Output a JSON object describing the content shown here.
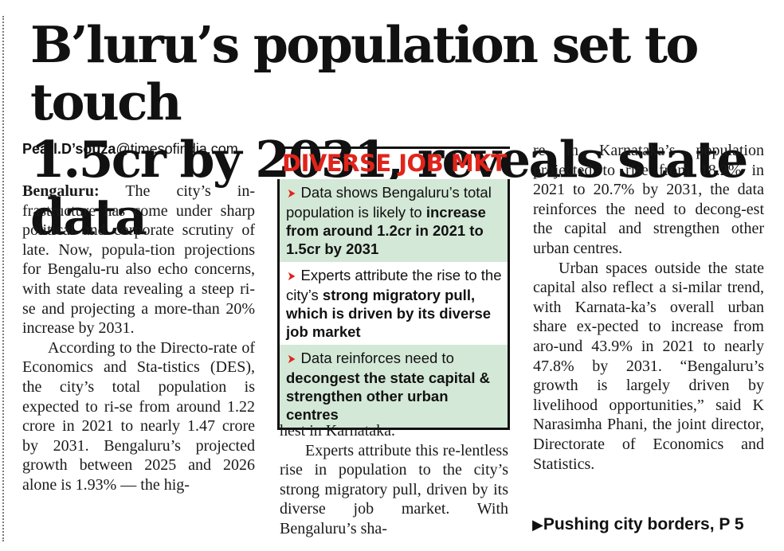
{
  "headline": {
    "line1": "B’luru’s population set to touch",
    "line2": "1.5cr by 2031, reveals state data"
  },
  "byline": {
    "name": "Pearl.D’souza",
    "domain": "@timesofindia.com"
  },
  "article": {
    "dateline": "Bengaluru:",
    "p1": "The city’s infrastructure has come under sharp political and corporate scrutiny of late. Now, population projections for Bengaluru also echo concerns, with state data revealing a steep rise and projecting a more-than 20% increase by 2031.",
    "p2": "According to the Directorate of Economics and Statistics (DES), the city’s total population is expected to rise from around 1.22 crore in 2021 to nearly 1.47 crore by 2031. Bengaluru’s projected growth between 2025 and 2026 alone is 1.93% — the highest in Karnataka.",
    "col2_p1": "hest in Karnataka.",
    "col2_p2": "Experts attribute this relentless rise in population to the city’s strong migratory pull, driven by its diverse job market. With Bengaluru’s sha-",
    "col3_p1": "re in Karnataka’s population projected to rise from 18.2% in 2021 to 20.7% by 2031, the data reinforces the need to decongest the capital and strengthen other urban centres.",
    "col3_p2": "Urban spaces outside the state capital also reflect a similar trend, with Karnataka’s overall urban share expected to increase from around 43.9% in 2021 to nearly 47.8% by 2031. “Bengaluru’s growth is largely driven by livelihood opportunities,” said K Narasimha Phani, the joint director, Directorate of Economics and Statistics."
  },
  "p1_text": "The city’s in-frastructure has come under sharp political and corporate scrutiny of late. Now, popula-tion projections for Bengalu-ru also echo concerns, with state data revealing a steep ri-se and projecting a more-than 20% increase by 2031.",
  "p2_text": "According to the Directo-rate of Economics and Sta-tistics (DES), the city’s total population is expected to ri-se from around 1.22 crore in 2021 to nearly 1.47 crore by 2031. Bengaluru’s projected growth between 2025 and 2026 alone is 1.93% — the hig-",
  "col2_p1_text": "hest in Karnataka.",
  "col2_p2_text": "Experts attribute this re-lentless rise in population to the city’s strong migratory pull, driven by its diverse job market. With Bengaluru’s sha-",
  "col3_p1_text": "re in Karnataka’s population projected to rise from 18.2% in 2021 to 20.7% by 2031, the data reinforces the need to decong-est the capital and strengthen other urban centres.",
  "col3_p2_text": "Urban spaces outside the state capital also reflect a si-milar trend, with Karnata-ka’s overall urban share ex-pected to increase from aro-und 43.9% in 2021 to nearly 47.8% by 2031. “Bengaluru’s growth is largely driven by livelihood opportunities,” said K Narasimha Phani, the joint director, Directorate of Economics and Statistics.",
  "sidebar": {
    "title": "DIVERSE JOB MKT",
    "items": [
      {
        "plain": "Data shows Bengaluru’s total population is likely to ",
        "bold": "increase from around 1.2cr in 2021 to 1.5cr by 2031"
      },
      {
        "plain": "Experts attribute the rise to the city’s ",
        "bold": "strong migratory pull, which is driven by its diverse job market"
      },
      {
        "plain": "Data reinforces need to ",
        "bold": "decongest the state capital & strengthen other urban centres"
      }
    ],
    "arrow_icon": "red-arrowhead-icon",
    "shade_color": "#d3e8d6",
    "accent_color": "#e0241b"
  },
  "teaser": {
    "icon": "right-triangle-icon",
    "text": "Pushing city borders, P 5"
  }
}
